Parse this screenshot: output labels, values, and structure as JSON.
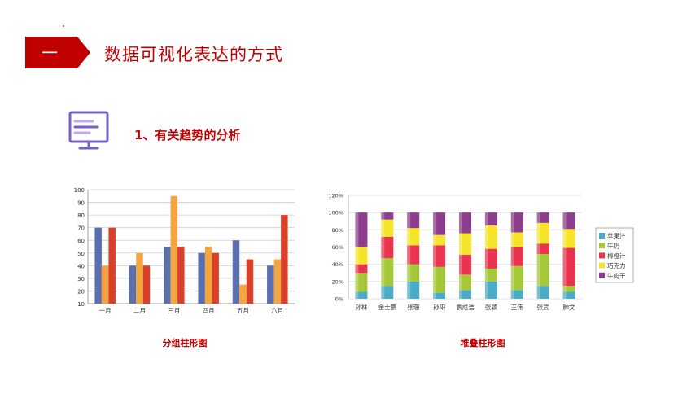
{
  "header": {
    "badge_text": "一",
    "title": "数据可视化表达的方式"
  },
  "section": {
    "title": "1、有关趋势的分析"
  },
  "colors": {
    "accent": "#c00000",
    "icon": "#7a5fc9"
  },
  "captions": {
    "grouped": "分组柱形图",
    "stacked": "堆叠柱形图"
  },
  "chart_data": [
    {
      "type": "bar",
      "variant": "grouped",
      "categories": [
        "一月",
        "二月",
        "三月",
        "四月",
        "五月",
        "六月"
      ],
      "series": [
        {
          "values": [
            70,
            40,
            55,
            50,
            60,
            40
          ],
          "color": "#5b6fae"
        },
        {
          "values": [
            40,
            50,
            95,
            55,
            25,
            45
          ],
          "color": "#f5a540"
        },
        {
          "values": [
            70,
            40,
            55,
            50,
            45,
            80
          ],
          "color": "#d9402a"
        }
      ],
      "ylim": [
        10,
        100
      ],
      "yticks": [
        10,
        20,
        30,
        40,
        50,
        60,
        70,
        80,
        90,
        100
      ],
      "grid": true
    },
    {
      "type": "bar",
      "variant": "stacked-percent",
      "categories": [
        "孙林",
        "金士鹏",
        "张珊",
        "孙阳",
        "袁成洁",
        "张颖",
        "王伟",
        "张武",
        "肺文"
      ],
      "series": [
        {
          "name": "苹果汁",
          "values": [
            8,
            15,
            20,
            7,
            10,
            20,
            10,
            15,
            8
          ],
          "color": "#4bacc6"
        },
        {
          "name": "牛奶",
          "values": [
            22,
            32,
            20,
            30,
            18,
            15,
            28,
            37,
            7
          ],
          "color": "#a5c936"
        },
        {
          "name": "柳橙汁",
          "values": [
            10,
            25,
            22,
            25,
            23,
            23,
            22,
            12,
            44
          ],
          "color": "#e8344e"
        },
        {
          "name": "巧克力",
          "values": [
            20,
            20,
            20,
            12,
            25,
            27,
            17,
            24,
            22
          ],
          "color": "#f5e42a"
        },
        {
          "name": "牛肉干",
          "values": [
            40,
            8,
            18,
            26,
            24,
            15,
            23,
            12,
            19
          ],
          "color": "#8e3d8e"
        }
      ],
      "ylim": [
        0,
        120
      ],
      "yticks": [
        "0%",
        "20%",
        "40%",
        "60%",
        "80%",
        "100%",
        "120%"
      ],
      "legend": "right",
      "grid": true
    }
  ]
}
